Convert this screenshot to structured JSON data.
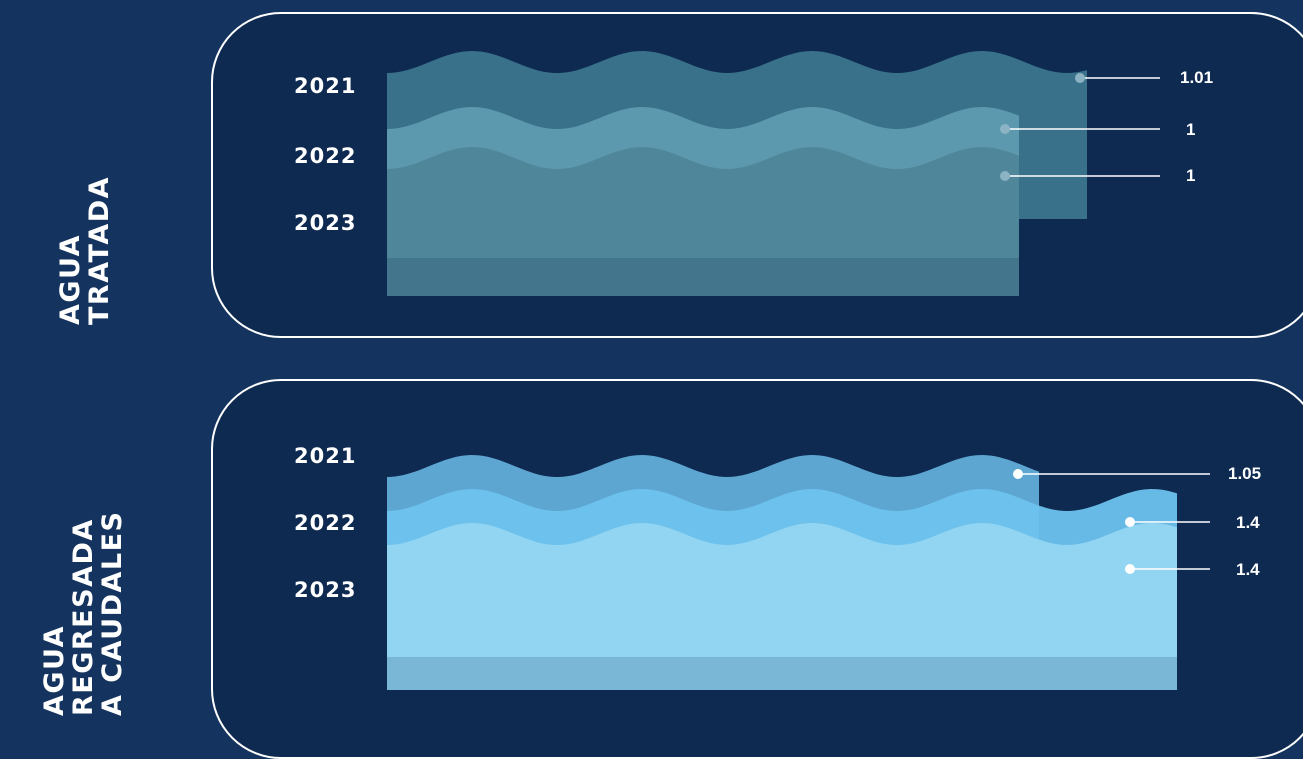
{
  "colors": {
    "background": "#14345f",
    "panel": "#0e2a51",
    "treated": [
      "#39718a",
      "#5f9bb0",
      "#4f8599"
    ],
    "returned": [
      "#5ea6d2",
      "#6ec2ee",
      "#95d6f2"
    ]
  },
  "chart_data": [
    {
      "type": "area",
      "title": "AGUA TRATADA",
      "title_lines": [
        "AGUA",
        "TRATADA"
      ],
      "categories": [
        "2021",
        "2022",
        "2023"
      ],
      "values": [
        1.01,
        1,
        1
      ],
      "labels": [
        "1.01",
        "1",
        "1"
      ]
    },
    {
      "type": "area",
      "title": "AGUA REGRESADA A CAUDALES",
      "title_lines": [
        "AGUA",
        "REGRESADA",
        "A CAUDALES"
      ],
      "categories": [
        "2021",
        "2022",
        "2023"
      ],
      "values": [
        1.05,
        1.4,
        1.4
      ],
      "labels": [
        "1.05",
        "1.4",
        "1.4"
      ]
    }
  ]
}
